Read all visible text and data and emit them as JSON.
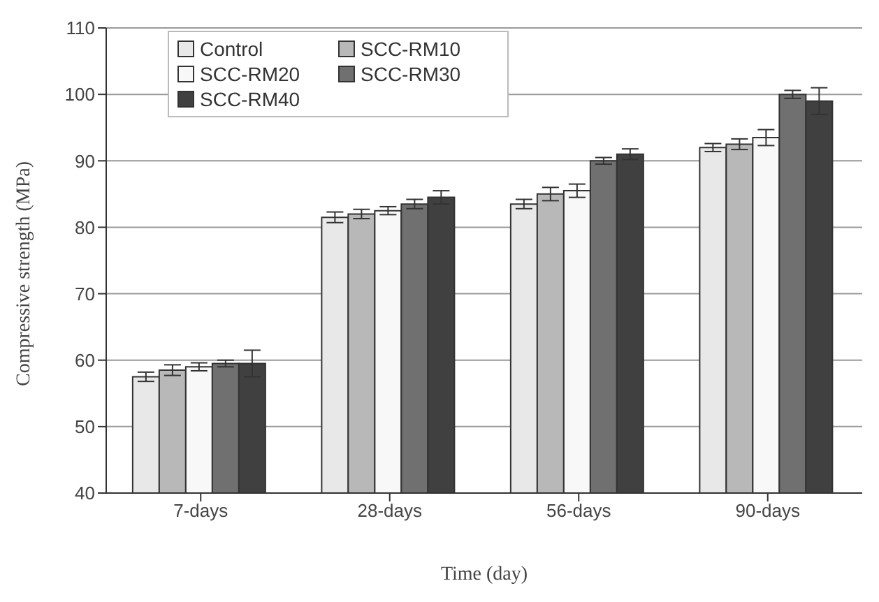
{
  "chart_data": {
    "type": "bar",
    "xlabel": "Time (day)",
    "ylabel": "Compressive strength (MPa)",
    "categories": [
      "7-days",
      "28-days",
      "56-days",
      "90-days"
    ],
    "series": [
      {
        "name": "Control",
        "color": "#e8e8e8",
        "values": [
          57.5,
          81.5,
          83.5,
          92
        ],
        "errors": [
          0.7,
          0.8,
          0.7,
          0.6
        ]
      },
      {
        "name": "SCC-RM10",
        "color": "#b8b8b8",
        "values": [
          58.5,
          82,
          85,
          92.5
        ],
        "errors": [
          0.8,
          0.7,
          1,
          0.8
        ]
      },
      {
        "name": "SCC-RM20",
        "color": "#f8f8f8",
        "values": [
          59,
          82.5,
          85.5,
          93.5
        ],
        "errors": [
          0.6,
          0.6,
          1,
          1.2
        ]
      },
      {
        "name": "SCC-RM30",
        "color": "#707070",
        "values": [
          59.5,
          83.5,
          90,
          100
        ],
        "errors": [
          0.5,
          0.7,
          0.5,
          0.6
        ]
      },
      {
        "name": "SCC-RM40",
        "color": "#404040",
        "values": [
          59.5,
          84.5,
          91,
          99
        ],
        "errors": [
          2,
          1,
          0.8,
          2
        ]
      }
    ],
    "ylim": [
      40,
      110
    ],
    "yticks": [
      40,
      50,
      60,
      70,
      80,
      90,
      100,
      110
    ],
    "grid": "y",
    "legend": "top left"
  }
}
